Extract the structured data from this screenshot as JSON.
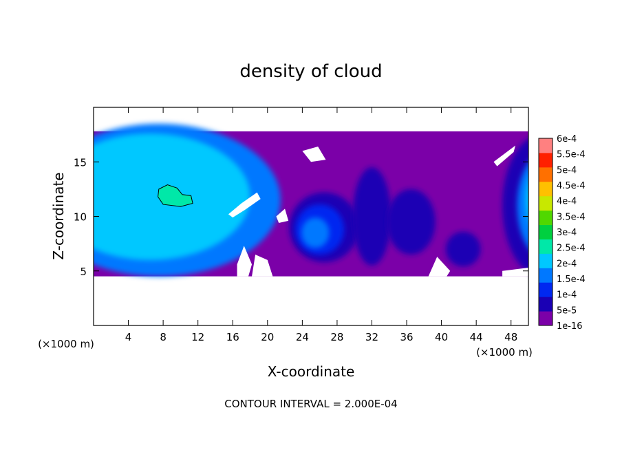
{
  "chart_data": {
    "type": "heatmap",
    "title": "density of cloud",
    "xlabel": "X-coordinate",
    "ylabel": "Z-coordinate",
    "x_unit_label": "(×1000 m)",
    "z_unit_label": "(×1000 m)",
    "footer": "CONTOUR INTERVAL = 2.000E-04",
    "xlim": [
      0,
      50
    ],
    "ylim": [
      0,
      20
    ],
    "x_ticks": [
      4,
      8,
      12,
      16,
      20,
      24,
      28,
      32,
      36,
      40,
      44,
      48
    ],
    "x_tick_labels": [
      "4",
      "8",
      "12",
      "16",
      "20",
      "24",
      "28",
      "32",
      "36",
      "40",
      "44",
      "48"
    ],
    "y_ticks": [
      5,
      10,
      15
    ],
    "y_tick_labels": [
      "5",
      "10",
      "15"
    ],
    "colorbar": {
      "levels": [
        1e-16,
        5e-05,
        0.0001,
        0.00015,
        0.0002,
        0.00025,
        0.0003,
        0.00035,
        0.0004,
        0.00045,
        0.0005,
        0.00055,
        0.0006
      ],
      "labels": [
        "1e-16",
        "5e-5",
        "1e-4",
        "1.5e-4",
        "2e-4",
        "2.5e-4",
        "3e-4",
        "3.5e-4",
        "4e-4",
        "4.5e-4",
        "5e-4",
        "5.5e-4",
        "6e-4"
      ],
      "colors": [
        "#7b00a8",
        "#1a00b4",
        "#0028f0",
        "#0078ff",
        "#00c8ff",
        "#00e8a8",
        "#00d040",
        "#50d800",
        "#c8e800",
        "#ffc000",
        "#ff7000",
        "#ff2000",
        "#ff8080"
      ]
    },
    "cloud_layer_z_range": [
      4.5,
      17.8
    ],
    "features": [
      {
        "shape": "polygon",
        "level": 0,
        "points": [
          [
            0,
            4.5
          ],
          [
            50,
            4.5
          ],
          [
            50,
            17.8
          ],
          [
            0,
            17.8
          ]
        ]
      },
      {
        "shape": "ellipse",
        "level": 3,
        "cx": 7.5,
        "cz": 11.5,
        "rx": 14,
        "rz": 7
      },
      {
        "shape": "ellipse",
        "level": 4,
        "cx": 6.5,
        "cz": 11.8,
        "rx": 11.5,
        "rz": 5.8
      },
      {
        "shape": "ellipse",
        "level": 1,
        "cx": 26.5,
        "cz": 9.0,
        "rx": 4.0,
        "rz": 3.2
      },
      {
        "shape": "ellipse",
        "level": 2,
        "cx": 26.0,
        "cz": 8.8,
        "rx": 2.8,
        "rz": 2.3
      },
      {
        "shape": "ellipse",
        "level": 3,
        "cx": 25.5,
        "cz": 8.5,
        "rx": 1.6,
        "rz": 1.4
      },
      {
        "shape": "ellipse",
        "level": 1,
        "cx": 32.0,
        "cz": 10.0,
        "rx": 2.2,
        "rz": 4.5
      },
      {
        "shape": "ellipse",
        "level": 1,
        "cx": 36.5,
        "cz": 9.5,
        "rx": 2.8,
        "rz": 3.0
      },
      {
        "shape": "ellipse",
        "level": 1,
        "cx": 42.5,
        "cz": 7.0,
        "rx": 2.0,
        "rz": 1.6
      },
      {
        "shape": "ellipse",
        "level": 1,
        "cx": 51.5,
        "cz": 11.0,
        "rx": 4.5,
        "rz": 6.5
      },
      {
        "shape": "ellipse",
        "level": 3,
        "cx": 52.5,
        "cz": 11.0,
        "rx": 3.8,
        "rz": 5.2
      },
      {
        "shape": "ellipse",
        "level": 4,
        "cx": 53.5,
        "cz": 11.5,
        "rx": 3.8,
        "rz": 4.5
      },
      {
        "shape": "polygon",
        "level": 5,
        "contour": true,
        "points": [
          [
            7.5,
            12.5
          ],
          [
            8.5,
            12.9
          ],
          [
            9.6,
            12.6
          ],
          [
            10.2,
            12.0
          ],
          [
            11.2,
            11.9
          ],
          [
            11.4,
            11.2
          ],
          [
            10.0,
            10.9
          ],
          [
            8.0,
            11.1
          ],
          [
            7.4,
            11.8
          ]
        ]
      },
      {
        "shape": "polygon",
        "level": -1,
        "points": [
          [
            15.5,
            10.2
          ],
          [
            17.0,
            11.2
          ],
          [
            18.8,
            12.2
          ],
          [
            19.2,
            11.6
          ],
          [
            17.4,
            10.6
          ],
          [
            16.0,
            9.9
          ]
        ]
      },
      {
        "shape": "polygon",
        "level": -1,
        "points": [
          [
            24.0,
            16.0
          ],
          [
            25.8,
            16.4
          ],
          [
            26.7,
            15.2
          ],
          [
            25.0,
            15.0
          ]
        ]
      },
      {
        "shape": "polygon",
        "level": -1,
        "points": [
          [
            46.0,
            15.0
          ],
          [
            48.5,
            16.5
          ],
          [
            48.3,
            15.9
          ],
          [
            46.4,
            14.6
          ]
        ]
      },
      {
        "shape": "polygon",
        "level": -1,
        "points": [
          [
            21.0,
            10.0
          ],
          [
            22.0,
            10.7
          ],
          [
            22.4,
            9.6
          ],
          [
            21.3,
            9.4
          ]
        ]
      },
      {
        "shape": "polygon",
        "level": -1,
        "points": [
          [
            16.5,
            5.6
          ],
          [
            17.3,
            7.3
          ],
          [
            18.2,
            5.6
          ],
          [
            17.8,
            4.5
          ],
          [
            16.5,
            4.5
          ]
        ]
      },
      {
        "shape": "polygon",
        "level": -1,
        "points": [
          [
            18.2,
            4.5
          ],
          [
            18.6,
            6.5
          ],
          [
            20.0,
            6.0
          ],
          [
            20.6,
            4.5
          ]
        ]
      },
      {
        "shape": "polygon",
        "level": -1,
        "points": [
          [
            47.0,
            4.5
          ],
          [
            50.0,
            4.5
          ],
          [
            50.0,
            5.3
          ],
          [
            47.0,
            5.0
          ]
        ]
      },
      {
        "shape": "polygon",
        "level": -1,
        "points": [
          [
            38.5,
            4.5
          ],
          [
            39.5,
            6.3
          ],
          [
            41.0,
            5.0
          ],
          [
            40.6,
            4.5
          ]
        ]
      }
    ]
  }
}
